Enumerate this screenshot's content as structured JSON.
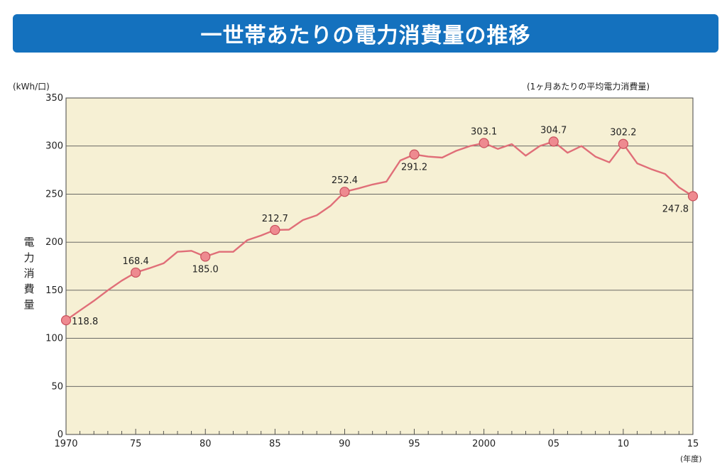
{
  "title": "一世帯あたりの電力消費量の推移",
  "unit_label": "(kWh/口)",
  "note": "(1ヶ月あたりの平均電力消費量)",
  "x_unit": "(年度)",
  "chart_data": {
    "type": "line",
    "title": "一世帯あたりの電力消費量の推移",
    "xlabel": "",
    "ylabel": "電力消費量",
    "ylim": [
      0,
      350
    ],
    "xlim": [
      1970,
      2015
    ],
    "grid": true,
    "yticks": [
      0,
      50,
      100,
      150,
      200,
      250,
      300,
      350
    ],
    "xticks": [
      {
        "value": 1970,
        "label": "1970"
      },
      {
        "value": 1975,
        "label": "75"
      },
      {
        "value": 1980,
        "label": "80"
      },
      {
        "value": 1985,
        "label": "85"
      },
      {
        "value": 1990,
        "label": "90"
      },
      {
        "value": 1995,
        "label": "95"
      },
      {
        "value": 2000,
        "label": "2000"
      },
      {
        "value": 2005,
        "label": "05"
      },
      {
        "value": 2010,
        "label": "10"
      },
      {
        "value": 2015,
        "label": "15"
      }
    ],
    "series": [
      {
        "x": [
          1970,
          1971,
          1972,
          1973,
          1974,
          1975,
          1976,
          1977,
          1978,
          1979,
          1980,
          1981,
          1982,
          1983,
          1984,
          1985,
          1986,
          1987,
          1988,
          1989,
          1990,
          1991,
          1992,
          1993,
          1994,
          1995,
          1996,
          1997,
          1998,
          1999,
          2000,
          2001,
          2002,
          2003,
          2004,
          2005,
          2006,
          2007,
          2008,
          2009,
          2010,
          2011,
          2012,
          2013,
          2014,
          2015
        ],
        "values": [
          118.8,
          129,
          139,
          150,
          160,
          168.4,
          173,
          178,
          190,
          191,
          185.0,
          190,
          190,
          202,
          207,
          212.7,
          213,
          223,
          228,
          238,
          252.4,
          256,
          260,
          263,
          285,
          291.2,
          289,
          288,
          295,
          300,
          303.1,
          297,
          302,
          290,
          300,
          304.7,
          293,
          300,
          289,
          283,
          302.2,
          282,
          276,
          271,
          257,
          247.8
        ],
        "color": "#e06e78"
      }
    ],
    "labeled_points": [
      {
        "x": 1970,
        "y": 118.8,
        "label": "118.8",
        "pos": "right"
      },
      {
        "x": 1975,
        "y": 168.4,
        "label": "168.4",
        "pos": "above"
      },
      {
        "x": 1980,
        "y": 185.0,
        "label": "185.0",
        "pos": "below"
      },
      {
        "x": 1985,
        "y": 212.7,
        "label": "212.7",
        "pos": "above"
      },
      {
        "x": 1990,
        "y": 252.4,
        "label": "252.4",
        "pos": "above"
      },
      {
        "x": 1995,
        "y": 291.2,
        "label": "291.2",
        "pos": "below"
      },
      {
        "x": 2000,
        "y": 303.1,
        "label": "303.1",
        "pos": "above"
      },
      {
        "x": 2005,
        "y": 304.7,
        "label": "304.7",
        "pos": "above"
      },
      {
        "x": 2010,
        "y": 302.2,
        "label": "302.2",
        "pos": "above"
      },
      {
        "x": 2015,
        "y": 247.8,
        "label": "247.8",
        "pos": "below-left"
      }
    ],
    "colors": {
      "plot_bg": "#f6f0d4",
      "line": "#e06e78",
      "marker_fill": "#ee8a90",
      "marker_stroke": "#c9505c",
      "grid": "#555555"
    }
  }
}
